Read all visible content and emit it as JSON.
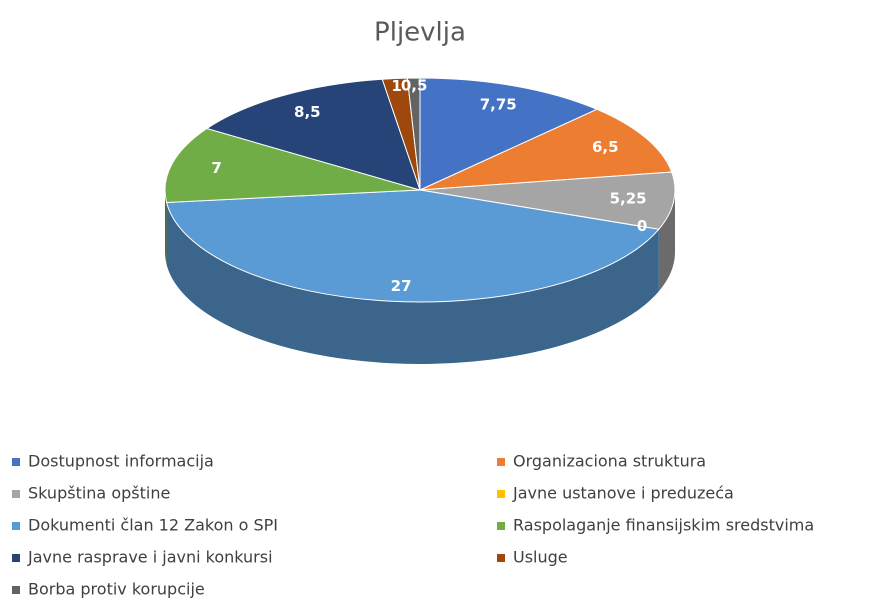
{
  "chart_data": {
    "type": "pie3d",
    "title": "Pljevlja",
    "categories": [
      "Dostupnost informacija",
      "Organizaciona struktura",
      "Skupština opštine",
      "Javne ustanove i  preduzeća",
      "Dokumenti član 12 Zakon o SPI",
      "Raspolaganje finansijskim sredstvima",
      "Javne rasprave i javni konkursi",
      "Usluge",
      "Borba protiv korupcije"
    ],
    "values": [
      7.75,
      6.5,
      5.25,
      0,
      27,
      7,
      8.5,
      1,
      0.5
    ],
    "value_labels": [
      "7,75",
      "6,5",
      "5,25",
      "0",
      "27",
      "7",
      "8,5",
      "1",
      "0,5"
    ],
    "colors": [
      "#4472c4",
      "#ed7d31",
      "#a5a5a5",
      "#ffc000",
      "#5b9bd5",
      "#70ad47",
      "#264478",
      "#9e480e",
      "#636363"
    ]
  }
}
